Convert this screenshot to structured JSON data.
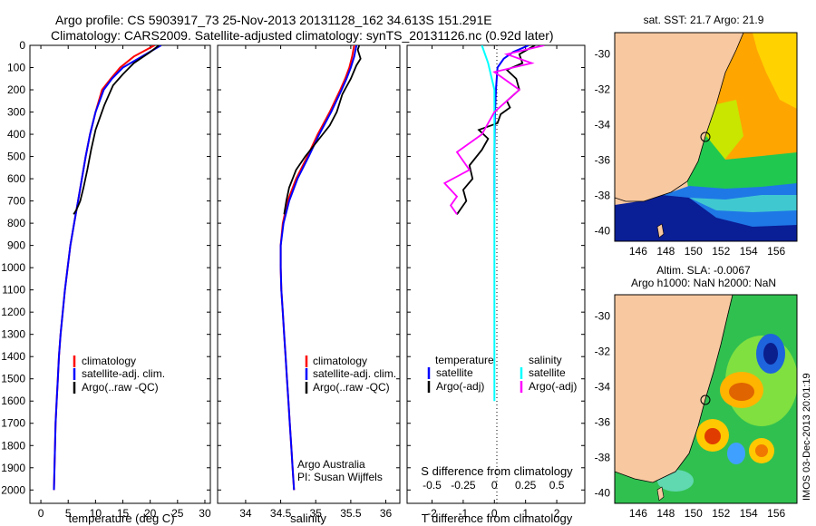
{
  "header": {
    "title_line1": "Argo profile: CS 5903917_73 25-Nov-2013 20131128_162 34.613S 151.291E",
    "title_line2": "Climatology: CARS2009. Satellite-adjusted climatology: synTS_20131126.nc (0.92d later)"
  },
  "colors": {
    "climatology": "#ff0000",
    "satellite": "#0000ff",
    "argo": "#000000",
    "sal_satellite": "#00ffff",
    "sal_argo": "#ff00ff",
    "land": "#f8c8a0"
  },
  "chart_data": [
    {
      "type": "line",
      "name": "temperature-profile",
      "xlabel": "temperature (deg C)",
      "ylabel": "",
      "xlim": [
        -2,
        31
      ],
      "ylim": [
        2060,
        0
      ],
      "xticks": [
        0,
        5,
        10,
        15,
        20,
        25,
        30
      ],
      "yticks": [
        0,
        100,
        200,
        300,
        400,
        500,
        600,
        700,
        800,
        900,
        1000,
        1100,
        1200,
        1300,
        1400,
        1500,
        1600,
        1700,
        1800,
        1900,
        2000
      ],
      "legend": [
        "climatology",
        "satellite-adj. clim.",
        "Argo(..raw -QC)"
      ],
      "legend_position": "lower-center",
      "series": [
        {
          "name": "climatology",
          "color": "#ff0000",
          "x": [
            20.8,
            17,
            14.5,
            12.8,
            11.2,
            10,
            9,
            8.2,
            7.5,
            6.8,
            6.1,
            5.4,
            4.9,
            4.4,
            4.0,
            3.6,
            3.3,
            3.1,
            2.9,
            2.7,
            2.6,
            2.5,
            2.4
          ],
          "y": [
            0,
            50,
            100,
            150,
            200,
            300,
            400,
            500,
            600,
            700,
            800,
            900,
            1000,
            1100,
            1200,
            1300,
            1400,
            1500,
            1600,
            1700,
            1800,
            1900,
            2000
          ]
        },
        {
          "name": "satellite-adj. clim.",
          "color": "#0000ff",
          "x": [
            22,
            18.5,
            15,
            13,
            11.5,
            10,
            9,
            8.2,
            7.5,
            6.8,
            6.1,
            5.4,
            4.9,
            4.4,
            4.0,
            3.6,
            3.3,
            3.1,
            2.9,
            2.7,
            2.6,
            2.5,
            2.4
          ],
          "y": [
            0,
            50,
            100,
            150,
            200,
            300,
            400,
            500,
            600,
            700,
            800,
            900,
            1000,
            1100,
            1200,
            1300,
            1400,
            1500,
            1600,
            1700,
            1800,
            1900,
            2000
          ]
        },
        {
          "name": "Argo(..raw -QC)",
          "color": "#000000",
          "x": [
            21.6,
            20,
            17,
            15,
            13.2,
            11.6,
            10,
            9.2,
            8.5,
            7.8,
            7.2,
            6.5,
            6.0
          ],
          "y": [
            0,
            30,
            80,
            130,
            180,
            270,
            380,
            470,
            560,
            640,
            700,
            740,
            760
          ]
        }
      ]
    },
    {
      "type": "line",
      "name": "salinity-profile",
      "xlabel": "salinity",
      "ylabel": "",
      "xlim": [
        33.6,
        36.2
      ],
      "ylim": [
        2060,
        0
      ],
      "xticks": [
        34,
        34.5,
        35,
        35.5,
        36
      ],
      "legend": [
        "climatology",
        "satellite-adj. clim.",
        "Argo(..raw -QC)"
      ],
      "legend_position": "lower-right",
      "annotation": [
        "Argo Australia",
        "PI: Susan Wijffels"
      ],
      "series": [
        {
          "name": "climatology",
          "color": "#ff0000",
          "x": [
            35.55,
            35.52,
            35.48,
            35.42,
            35.35,
            35.2,
            35.03,
            34.88,
            34.72,
            34.6,
            34.53,
            34.5,
            34.5,
            34.51,
            34.53,
            34.55,
            34.57,
            34.59,
            34.61,
            34.63,
            34.65,
            34.67,
            34.69
          ],
          "y": [
            0,
            50,
            100,
            150,
            200,
            300,
            400,
            500,
            600,
            700,
            800,
            900,
            1000,
            1100,
            1200,
            1300,
            1400,
            1500,
            1600,
            1700,
            1800,
            1900,
            2000
          ]
        },
        {
          "name": "satellite-adj. clim.",
          "color": "#0000ff",
          "x": [
            35.58,
            35.55,
            35.5,
            35.44,
            35.37,
            35.22,
            35.05,
            34.9,
            34.74,
            34.62,
            34.54,
            34.5,
            34.5,
            34.51,
            34.53,
            34.55,
            34.57,
            34.59,
            34.61,
            34.63,
            34.65,
            34.67,
            34.69
          ],
          "y": [
            0,
            50,
            100,
            150,
            200,
            300,
            400,
            500,
            600,
            700,
            800,
            900,
            1000,
            1100,
            1200,
            1300,
            1400,
            1500,
            1600,
            1700,
            1800,
            1900,
            2000
          ]
        },
        {
          "name": "Argo(..raw -QC)",
          "color": "#000000",
          "x": [
            35.62,
            35.6,
            35.64,
            35.58,
            35.5,
            35.38,
            35.3,
            35.2,
            35.05,
            34.85,
            34.72,
            34.62,
            34.58,
            34.55
          ],
          "y": [
            0,
            20,
            60,
            90,
            150,
            220,
            300,
            360,
            420,
            500,
            560,
            640,
            700,
            760
          ]
        }
      ]
    },
    {
      "type": "line",
      "name": "difference-profile",
      "xlabel": "T difference from climatology",
      "xlabel_top": "S difference from climatology",
      "xlim": [
        -2.8,
        2.9
      ],
      "ylim": [
        2060,
        0
      ],
      "xticks": [
        -2,
        -1,
        0,
        1,
        2
      ],
      "xticks_sal": [
        "-0.5",
        "-0.25",
        "0",
        "0.25",
        "0.5"
      ],
      "legend_temperature_title": "temperature",
      "legend_salinity_title": "salinity",
      "legend": [
        "satellite",
        "Argo(-adj)",
        "satellite",
        "Argo(-adj)"
      ],
      "legend_position": "lower-center",
      "series": [
        {
          "name": "temperature satellite",
          "color": "#0000ff",
          "x": [
            1.1,
            0.6,
            0.3,
            0.1,
            0.05,
            0.02,
            0,
            0
          ],
          "y": [
            0,
            30,
            60,
            100,
            200,
            300,
            500,
            700
          ]
        },
        {
          "name": "temperature Argo(-adj)",
          "color": "#000000",
          "x": [
            1.3,
            0.8,
            0.9,
            0.4,
            0.7,
            0.8,
            0.4,
            0.5,
            0.2,
            0.1,
            -0.5,
            -0.2,
            -0.4,
            -0.8,
            -0.7,
            -1.0,
            -0.9,
            -1.2
          ],
          "y": [
            0,
            40,
            80,
            110,
            150,
            200,
            250,
            280,
            310,
            350,
            380,
            420,
            470,
            540,
            600,
            650,
            700,
            760
          ]
        },
        {
          "name": "salinity satellite",
          "color": "#00ffff",
          "x": [
            -0.1,
            -0.05,
            0,
            0,
            0,
            0,
            0,
            0,
            0,
            0,
            0,
            0,
            0
          ],
          "y": [
            0,
            80,
            200,
            400,
            600,
            800,
            1000,
            1100,
            1200,
            1300,
            1400,
            1500,
            1600
          ]
        },
        {
          "name": "salinity Argo(-adj)",
          "color": "#ff00ff",
          "x": [
            0.4,
            0.1,
            0.3,
            0,
            0.2,
            0,
            -0.1,
            -0.3,
            -0.2,
            -0.4,
            -0.3,
            -0.35,
            -0.3
          ],
          "y": [
            0,
            40,
            80,
            120,
            200,
            300,
            400,
            480,
            560,
            620,
            680,
            720,
            760
          ]
        }
      ]
    },
    {
      "type": "heatmap",
      "name": "sst-map",
      "title": "sat. SST: 21.7 Argo: 21.9",
      "xticks": [
        "146",
        "148",
        "150",
        "152",
        "154",
        "156"
      ],
      "yticks": [
        "-30",
        "-32",
        "-34",
        "-36",
        "-38",
        "-40"
      ],
      "xlim": [
        144.3,
        157.5
      ],
      "ylim": [
        -40.6,
        -28.8
      ]
    },
    {
      "type": "heatmap",
      "name": "sla-map",
      "title_line1": "Altim. SLA: -0.0067",
      "title_line2": "Argo h1000: NaN h2000: NaN",
      "xticks": [
        "146",
        "148",
        "150",
        "152",
        "154",
        "156"
      ],
      "yticks": [
        "-30",
        "-32",
        "-34",
        "-36",
        "-38",
        "-40"
      ],
      "xlim": [
        144.3,
        157.5
      ],
      "ylim": [
        -40.6,
        -28.8
      ],
      "side_label": "IMOS 03-Dec-2013 20:01:19"
    }
  ]
}
